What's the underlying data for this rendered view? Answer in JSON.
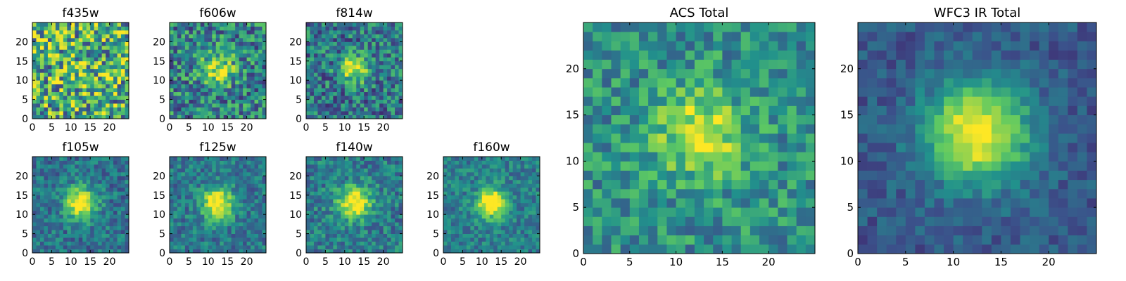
{
  "chart_data": {
    "type": "heatmap",
    "grid_size": 25,
    "colormap": "viridis",
    "colormap_stops": [
      "#440154",
      "#3b528b",
      "#21918c",
      "#5ec962",
      "#fde725"
    ],
    "panels": [
      {
        "id": "f435w",
        "title": "f435w",
        "size": "small",
        "xticks": [
          0,
          5,
          10,
          15,
          20
        ],
        "yticks": [
          0,
          5,
          10,
          15,
          20
        ],
        "xlim": [
          0,
          25
        ],
        "ylim": [
          0,
          25
        ],
        "source_peak": 0.08,
        "source_sigma": 3.5,
        "noise": 0.85,
        "base": 0.62,
        "seed": 11
      },
      {
        "id": "f606w",
        "title": "f606w",
        "size": "small",
        "xticks": [
          0,
          5,
          10,
          15,
          20
        ],
        "yticks": [
          0,
          5,
          10,
          15,
          20
        ],
        "xlim": [
          0,
          25
        ],
        "ylim": [
          0,
          25
        ],
        "source_peak": 0.45,
        "source_sigma": 3.0,
        "noise": 0.6,
        "base": 0.45,
        "seed": 22
      },
      {
        "id": "f814w",
        "title": "f814w",
        "size": "small",
        "xticks": [
          0,
          5,
          10,
          15,
          20
        ],
        "yticks": [
          0,
          5,
          10,
          15,
          20
        ],
        "xlim": [
          0,
          25
        ],
        "ylim": [
          0,
          25
        ],
        "source_peak": 0.55,
        "source_sigma": 2.6,
        "noise": 0.55,
        "base": 0.4,
        "seed": 33
      },
      {
        "id": "f105w",
        "title": "f105w",
        "size": "small",
        "xticks": [
          0,
          5,
          10,
          15,
          20
        ],
        "yticks": [
          0,
          5,
          10,
          15,
          20
        ],
        "xlim": [
          0,
          25
        ],
        "ylim": [
          0,
          25
        ],
        "source_peak": 0.7,
        "source_sigma": 2.8,
        "noise": 0.35,
        "base": 0.38,
        "seed": 44
      },
      {
        "id": "f125w",
        "title": "f125w",
        "size": "small",
        "xticks": [
          0,
          5,
          10,
          15,
          20
        ],
        "yticks": [
          0,
          5,
          10,
          15,
          20
        ],
        "xlim": [
          0,
          25
        ],
        "ylim": [
          0,
          25
        ],
        "source_peak": 0.7,
        "source_sigma": 2.8,
        "noise": 0.35,
        "base": 0.4,
        "seed": 55
      },
      {
        "id": "f140w",
        "title": "f140w",
        "size": "small",
        "xticks": [
          0,
          5,
          10,
          15,
          20
        ],
        "yticks": [
          0,
          5,
          10,
          15,
          20
        ],
        "xlim": [
          0,
          25
        ],
        "ylim": [
          0,
          25
        ],
        "source_peak": 0.65,
        "source_sigma": 2.9,
        "noise": 0.38,
        "base": 0.42,
        "seed": 66
      },
      {
        "id": "f160w",
        "title": "f160w",
        "size": "small",
        "xticks": [
          0,
          5,
          10,
          15,
          20
        ],
        "yticks": [
          0,
          5,
          10,
          15,
          20
        ],
        "xlim": [
          0,
          25
        ],
        "ylim": [
          0,
          25
        ],
        "source_peak": 0.75,
        "source_sigma": 2.6,
        "noise": 0.32,
        "base": 0.42,
        "seed": 77
      },
      {
        "id": "acs-total",
        "title": "ACS Total",
        "size": "large",
        "xticks": [
          0,
          5,
          10,
          15,
          20
        ],
        "yticks": [
          0,
          5,
          10,
          15,
          20
        ],
        "xlim": [
          0,
          25
        ],
        "ylim": [
          0,
          25
        ],
        "source_peak": 0.45,
        "source_sigma": 3.2,
        "noise": 0.42,
        "base": 0.5,
        "seed": 88
      },
      {
        "id": "wfc3-ir-total",
        "title": "WFC3 IR Total",
        "size": "large",
        "xticks": [
          0,
          5,
          10,
          15,
          20
        ],
        "yticks": [
          0,
          5,
          10,
          15,
          20
        ],
        "xlim": [
          0,
          25
        ],
        "ylim": [
          0,
          25
        ],
        "source_peak": 0.75,
        "source_sigma": 3.8,
        "noise": 0.22,
        "base": 0.28,
        "seed": 99
      }
    ]
  }
}
